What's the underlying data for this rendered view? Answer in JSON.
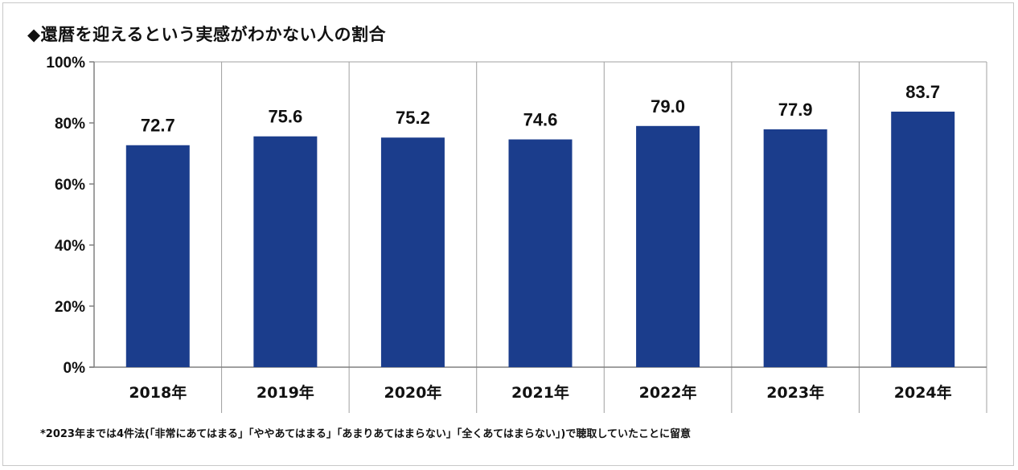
{
  "title": "◆還暦を迎えるという実感がわかない人の割合",
  "footnote": "*2023年までは4件法(「非常にあてはまる」「ややあてはまる」「あまりあてはまらない」「全くあてはまらない」)で聴取していたことに留意",
  "colors": {
    "bar": "#1b3d8c",
    "axis": "#808080",
    "divider": "#a0a0a0"
  },
  "chart_data": {
    "type": "bar",
    "categories": [
      "2018年",
      "2019年",
      "2020年",
      "2021年",
      "2022年",
      "2023年",
      "2024年"
    ],
    "values": [
      72.7,
      75.6,
      75.2,
      74.6,
      79.0,
      77.9,
      83.7
    ],
    "value_labels": [
      "72.7",
      "75.6",
      "75.2",
      "74.6",
      "79.0",
      "77.9",
      "83.7"
    ],
    "ylim": [
      0,
      100
    ],
    "yticks": [
      0,
      20,
      40,
      60,
      80,
      100
    ],
    "ytick_labels": [
      "0%",
      "20%",
      "40%",
      "60%",
      "80%",
      "100%"
    ],
    "grid": false,
    "legend": "none"
  }
}
